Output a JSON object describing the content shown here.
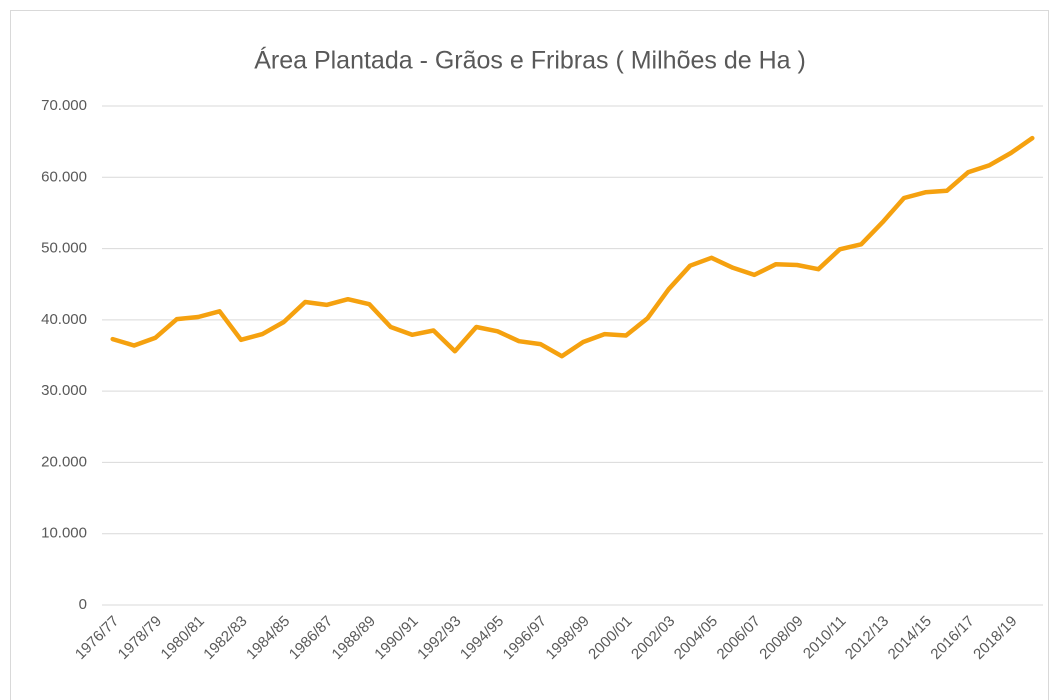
{
  "chart_data": {
    "type": "line",
    "title": "Área Plantada - Grãos e Fribras ( Milhões de Ha )",
    "categories": [
      "1976/77",
      null,
      "1978/79",
      null,
      "1980/81",
      null,
      "1982/83",
      null,
      "1984/85",
      null,
      "1986/87",
      null,
      "1988/89",
      null,
      "1990/91",
      null,
      "1992/93",
      null,
      "1994/95",
      null,
      "1996/97",
      null,
      "1998/99",
      null,
      "2000/01",
      null,
      "2002/03",
      null,
      "2004/05",
      null,
      "2006/07",
      null,
      "2008/09",
      null,
      "2010/11",
      null,
      "2012/13",
      null,
      "2014/15",
      null,
      "2016/17",
      null,
      "2018/19",
      null
    ],
    "series": [
      {
        "name": "Área Plantada",
        "color": "#f5a10f",
        "values": [
          37300,
          36400,
          37500,
          40100,
          40400,
          41200,
          37200,
          38000,
          39700,
          42500,
          42100,
          42900,
          42200,
          39000,
          37900,
          38500,
          35600,
          39000,
          38400,
          37000,
          36600,
          34900,
          36900,
          38000,
          37800,
          40200,
          44300,
          47600,
          48700,
          47300,
          46300,
          47800,
          47700,
          47100,
          49900,
          50600,
          53700,
          57100,
          57900,
          58100,
          60700,
          61700,
          63400,
          65500
        ]
      }
    ],
    "ylim": [
      0,
      70000
    ],
    "yticks": [
      0,
      {
        "value": 10000,
        "label": "10.000"
      },
      {
        "value": 20000,
        "label": "20.000"
      },
      {
        "value": 30000,
        "label": "30.000"
      },
      {
        "value": 40000,
        "label": "40.000"
      },
      {
        "value": 50000,
        "label": "50.000"
      },
      {
        "value": 60000,
        "label": "60.000"
      },
      {
        "value": 70000,
        "label": "70.000"
      }
    ],
    "grid": true
  }
}
